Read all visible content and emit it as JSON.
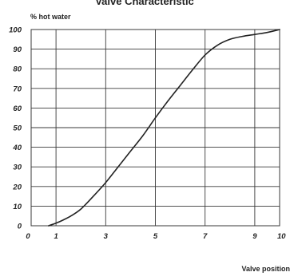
{
  "chart_data": {
    "type": "line",
    "title": "Valve Characteristic",
    "xlabel": "Valve position",
    "ylabel": "% hot water",
    "xlim": [
      0,
      10
    ],
    "ylim": [
      0,
      100
    ],
    "x_ticks": [
      {
        "value": 0,
        "label": "0"
      },
      {
        "value": 1,
        "label": "1"
      },
      {
        "value": 3,
        "label": "3"
      },
      {
        "value": 5,
        "label": "5"
      },
      {
        "value": 7,
        "label": "7"
      },
      {
        "value": 9,
        "label": "9"
      },
      {
        "value": 10,
        "label": "10"
      }
    ],
    "y_ticks": [
      0,
      10,
      20,
      30,
      40,
      50,
      60,
      70,
      80,
      90,
      100
    ],
    "x_gridlines": [
      1,
      3,
      5,
      7,
      9
    ],
    "grid": true,
    "line_color": "#222222",
    "grid_color": "#3a3a3a",
    "series": [
      {
        "x": [
          0.7,
          1.0,
          1.3,
          1.6,
          2.0,
          2.5,
          3.0,
          3.5,
          4.0,
          4.5,
          5.0,
          5.5,
          6.0,
          6.5,
          7.0,
          7.5,
          8.0,
          8.5,
          9.0,
          9.5,
          10.0
        ],
        "y": [
          0,
          1.3,
          3,
          5,
          8.5,
          15,
          22,
          30,
          38,
          46,
          55,
          63.5,
          71.5,
          79.5,
          87,
          92,
          95,
          96.5,
          97.5,
          98.5,
          100
        ]
      }
    ]
  }
}
